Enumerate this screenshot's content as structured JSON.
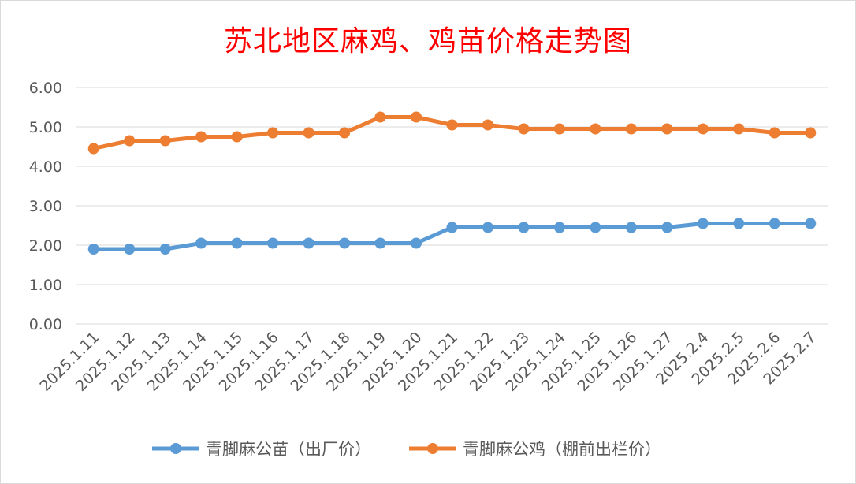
{
  "colors": {
    "series1": "#5b9bd5",
    "series2": "#ed7d31",
    "title": "#ff0000",
    "grid": "#d9d9d9",
    "axis_text": "#595959"
  },
  "chart_data": {
    "type": "line",
    "title": "苏北地区麻鸡、鸡苗价格走势图",
    "categories": [
      "2025.1.11",
      "2025.1.12",
      "2025.1.13",
      "2025.1.14",
      "2025.1.15",
      "2025.1.16",
      "2025.1.17",
      "2025.1.18",
      "2025.1.19",
      "2025.1.20",
      "2025.1.21",
      "2025.1.22",
      "2025.1.23",
      "2025.1.24",
      "2025.1.25",
      "2025.1.26",
      "2025.1.27",
      "2025.2.4",
      "2025.2.5",
      "2025.2.6",
      "2025.2.7"
    ],
    "yticks": [
      "0.00",
      "1.00",
      "2.00",
      "3.00",
      "4.00",
      "5.00",
      "6.00"
    ],
    "ylim": [
      0,
      6
    ],
    "grid": true,
    "legend_position": "bottom",
    "series": [
      {
        "name": "青脚麻公苗（出厂价）",
        "values": [
          1.9,
          1.9,
          1.9,
          2.05,
          2.05,
          2.05,
          2.05,
          2.05,
          2.05,
          2.05,
          2.45,
          2.45,
          2.45,
          2.45,
          2.45,
          2.45,
          2.45,
          2.55,
          2.55,
          2.55,
          2.55
        ]
      },
      {
        "name": "青脚麻公鸡（棚前出栏价）",
        "values": [
          4.45,
          4.65,
          4.65,
          4.75,
          4.75,
          4.85,
          4.85,
          4.85,
          5.25,
          5.25,
          5.05,
          5.05,
          4.95,
          4.95,
          4.95,
          4.95,
          4.95,
          4.95,
          4.95,
          4.85,
          4.85
        ]
      }
    ]
  }
}
